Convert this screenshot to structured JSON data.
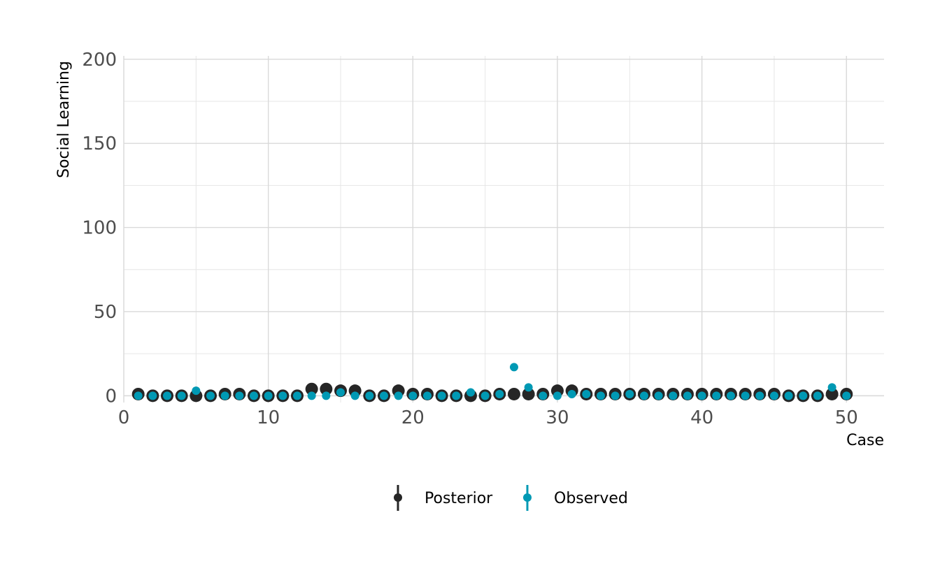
{
  "chart_data": {
    "type": "scatter",
    "title": "",
    "xlabel": "Case",
    "ylabel": "Social Learning",
    "xlim": [
      0,
      52.6
    ],
    "ylim": [
      -4,
      202
    ],
    "x_ticks": [
      0,
      10,
      20,
      30,
      40,
      50
    ],
    "y_ticks": [
      0,
      50,
      100,
      150,
      200
    ],
    "x_tick_labels": [
      "0",
      "10",
      "20",
      "30",
      "40",
      "50"
    ],
    "y_tick_labels": [
      "0",
      "50",
      "100",
      "150",
      "200"
    ],
    "grid": true,
    "legend_position": "bottom",
    "series": [
      {
        "name": "Posterior",
        "color": "#262626",
        "x": [
          1,
          2,
          3,
          4,
          5,
          6,
          7,
          8,
          9,
          10,
          11,
          12,
          13,
          14,
          15,
          16,
          17,
          18,
          19,
          20,
          21,
          22,
          23,
          24,
          25,
          26,
          27,
          28,
          29,
          30,
          31,
          32,
          33,
          34,
          35,
          36,
          37,
          38,
          39,
          40,
          41,
          42,
          43,
          44,
          45,
          46,
          47,
          48,
          49,
          50
        ],
        "y": [
          1,
          0,
          0,
          0,
          0,
          0,
          1,
          1,
          0,
          0,
          0,
          0,
          4,
          4,
          3,
          3,
          0,
          0,
          3,
          1,
          1,
          0,
          0,
          0,
          0,
          1,
          1,
          1,
          1,
          3,
          3,
          1,
          1,
          1,
          1,
          1,
          1,
          1,
          1,
          1,
          1,
          1,
          1,
          1,
          1,
          0,
          0,
          0,
          1,
          1
        ]
      },
      {
        "name": "Observed",
        "color": "#0099b4",
        "x": [
          1,
          2,
          3,
          4,
          5,
          6,
          7,
          8,
          9,
          10,
          11,
          12,
          13,
          14,
          15,
          16,
          17,
          18,
          19,
          20,
          21,
          22,
          23,
          24,
          25,
          26,
          27,
          28,
          29,
          30,
          31,
          32,
          33,
          34,
          35,
          36,
          37,
          38,
          39,
          40,
          41,
          42,
          43,
          44,
          45,
          46,
          47,
          48,
          49,
          50
        ],
        "y": [
          0,
          0,
          0,
          0,
          3,
          0,
          0,
          0,
          0,
          0,
          0,
          0,
          0,
          0,
          2,
          0,
          0,
          0,
          0,
          0,
          0,
          0,
          0,
          2,
          0,
          1,
          17,
          5,
          0,
          0,
          1,
          1,
          0,
          0,
          1,
          0,
          0,
          0,
          0,
          0,
          0,
          0,
          0,
          0,
          0,
          0,
          0,
          0,
          5,
          0
        ]
      }
    ]
  }
}
